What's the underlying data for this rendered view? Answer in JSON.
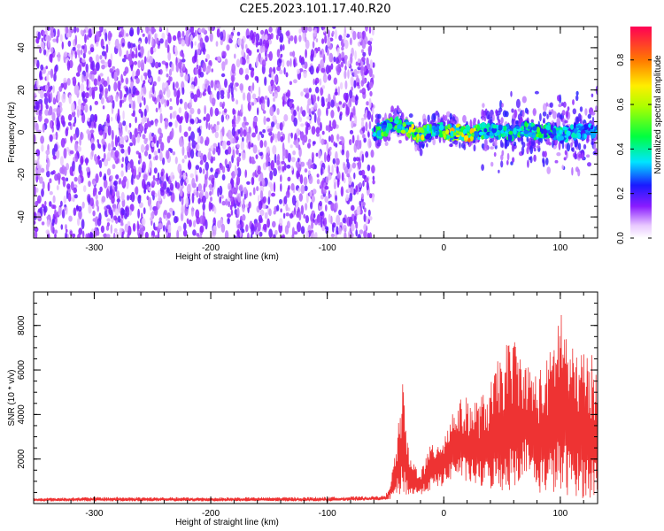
{
  "figure": {
    "title": "C2E5.2023.101.17.40.R20"
  },
  "chart_data": [
    {
      "type": "heatmap",
      "xlabel": "Height of straight line (km)",
      "ylabel": "Frequency (Hz)",
      "xlim": [
        -352,
        132
      ],
      "ylim": [
        -50,
        50
      ],
      "xticks": [
        -300,
        -200,
        -100,
        0,
        100
      ],
      "yticks": [
        -40,
        -20,
        0,
        20,
        40
      ],
      "colorbar": {
        "label": "Normalized spectral amplitude",
        "range": [
          0,
          0.95
        ],
        "ticks": [
          0.0,
          0.2,
          0.4,
          0.6,
          0.8
        ]
      },
      "noise_region_x": [
        -352,
        -60
      ],
      "signal_region_x": [
        -60,
        132
      ],
      "signal_ridge": {
        "x": [
          -58,
          -50,
          -42,
          -35,
          -28,
          -22,
          -15,
          -8,
          0,
          8,
          15,
          22,
          30,
          40,
          50,
          60,
          70,
          80,
          90,
          100,
          110,
          120,
          130
        ],
        "freq": [
          0,
          2,
          4,
          3,
          1,
          -2,
          0,
          2,
          1,
          0,
          0,
          -1,
          0,
          1,
          0,
          -1,
          2,
          0,
          1,
          -1,
          0,
          1,
          0
        ],
        "amplitude": [
          0.5,
          0.6,
          0.55,
          0.6,
          0.7,
          0.9,
          0.6,
          0.5,
          0.6,
          0.85,
          0.65,
          0.9,
          0.55,
          0.4,
          0.45,
          0.5,
          0.6,
          0.55,
          0.5,
          0.45,
          0.4,
          0.35,
          0.35
        ]
      }
    },
    {
      "type": "line",
      "xlabel": "Height of straight line (km)",
      "ylabel": "SNR (10 * v/v)",
      "xlim": [
        -352,
        132
      ],
      "ylim": [
        0,
        9500
      ],
      "xticks": [
        -300,
        -200,
        -100,
        0,
        100
      ],
      "yticks": [
        2000,
        4000,
        6000,
        8000
      ],
      "series": [
        {
          "color": "#ee3333",
          "envelope_x": [
            -352,
            -300,
            -200,
            -100,
            -50,
            -45,
            -40,
            -35,
            -30,
            -20,
            -10,
            0,
            10,
            20,
            30,
            40,
            50,
            60,
            70,
            80,
            90,
            100,
            110,
            120,
            132
          ],
          "envelope_max": [
            250,
            300,
            280,
            300,
            350,
            1200,
            3000,
            5600,
            2200,
            1500,
            2800,
            3200,
            4600,
            4800,
            4700,
            5400,
            7000,
            7600,
            6400,
            6000,
            6600,
            9300,
            7000,
            7000,
            6500
          ],
          "envelope_min": [
            100,
            100,
            100,
            100,
            150,
            200,
            300,
            400,
            300,
            400,
            600,
            800,
            1200,
            900,
            700,
            600,
            500,
            600,
            1500,
            400,
            500,
            300,
            400,
            200,
            200
          ]
        }
      ]
    }
  ]
}
